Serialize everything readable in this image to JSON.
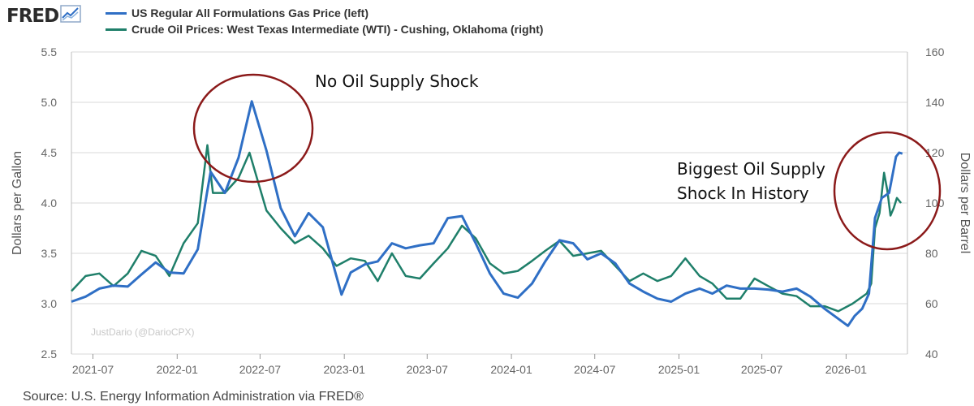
{
  "header": {
    "logo_text": "FRED",
    "logo_icon": "chart-trend-icon"
  },
  "legend": [
    {
      "label": "US Regular All Formulations Gas Price (left)",
      "color": "#2f6fc5"
    },
    {
      "label": "Crude Oil Prices: West Texas Intermediate (WTI) - Cushing, Oklahoma (right)",
      "color": "#1f7f6a"
    }
  ],
  "source": "Source: U.S. Energy Information Administration via FRED®",
  "chart_data": {
    "type": "line",
    "xlim": [
      "2021-05-15",
      "2026-05-15"
    ],
    "x_ticks": [
      "2021-07",
      "2022-01",
      "2022-07",
      "2023-01",
      "2023-07",
      "2024-01",
      "2024-07",
      "2025-01",
      "2025-07",
      "2026-01"
    ],
    "left_axis": {
      "label": "Dollars per Gallon",
      "ylim": [
        2.5,
        5.5
      ],
      "ticks": [
        "2.5",
        "3.0",
        "3.5",
        "4.0",
        "4.5",
        "5.0",
        "5.5"
      ]
    },
    "right_axis": {
      "label": "Dollars per Barrel",
      "ylim": [
        40,
        160
      ],
      "ticks": [
        "40",
        "60",
        "80",
        "100",
        "120",
        "140",
        "160"
      ]
    },
    "grid": "horizontal",
    "series": [
      {
        "name": "US Regular All Formulations Gas Price (left)",
        "axis": "left",
        "color": "#2f6fc5",
        "points": [
          [
            "2021-05-15",
            3.02
          ],
          [
            "2021-06-15",
            3.07
          ],
          [
            "2021-07-15",
            3.15
          ],
          [
            "2021-08-15",
            3.18
          ],
          [
            "2021-09-15",
            3.17
          ],
          [
            "2021-10-15",
            3.29
          ],
          [
            "2021-11-15",
            3.41
          ],
          [
            "2021-12-15",
            3.31
          ],
          [
            "2022-01-15",
            3.3
          ],
          [
            "2022-02-15",
            3.54
          ],
          [
            "2022-03-07",
            4.1
          ],
          [
            "2022-03-15",
            4.31
          ],
          [
            "2022-04-15",
            4.1
          ],
          [
            "2022-05-15",
            4.45
          ],
          [
            "2022-06-13",
            5.01
          ],
          [
            "2022-07-15",
            4.52
          ],
          [
            "2022-08-15",
            3.95
          ],
          [
            "2022-09-15",
            3.67
          ],
          [
            "2022-10-15",
            3.9
          ],
          [
            "2022-11-15",
            3.76
          ],
          [
            "2022-12-26",
            3.09
          ],
          [
            "2023-01-15",
            3.31
          ],
          [
            "2023-02-15",
            3.39
          ],
          [
            "2023-03-15",
            3.42
          ],
          [
            "2023-04-15",
            3.6
          ],
          [
            "2023-05-15",
            3.55
          ],
          [
            "2023-06-15",
            3.58
          ],
          [
            "2023-07-15",
            3.6
          ],
          [
            "2023-08-15",
            3.85
          ],
          [
            "2023-09-15",
            3.87
          ],
          [
            "2023-10-15",
            3.6
          ],
          [
            "2023-11-15",
            3.3
          ],
          [
            "2023-12-15",
            3.1
          ],
          [
            "2024-01-15",
            3.06
          ],
          [
            "2024-02-15",
            3.2
          ],
          [
            "2024-03-15",
            3.42
          ],
          [
            "2024-04-15",
            3.63
          ],
          [
            "2024-05-15",
            3.6
          ],
          [
            "2024-06-15",
            3.44
          ],
          [
            "2024-07-15",
            3.5
          ],
          [
            "2024-08-15",
            3.4
          ],
          [
            "2024-09-15",
            3.2
          ],
          [
            "2024-10-15",
            3.12
          ],
          [
            "2024-11-15",
            3.05
          ],
          [
            "2024-12-15",
            3.02
          ],
          [
            "2025-01-15",
            3.1
          ],
          [
            "2025-02-15",
            3.15
          ],
          [
            "2025-03-15",
            3.1
          ],
          [
            "2025-04-15",
            3.18
          ],
          [
            "2025-05-15",
            3.15
          ],
          [
            "2025-06-15",
            3.15
          ],
          [
            "2025-07-15",
            3.14
          ],
          [
            "2025-08-15",
            3.12
          ],
          [
            "2025-09-15",
            3.15
          ],
          [
            "2025-10-15",
            3.07
          ],
          [
            "2025-11-15",
            2.95
          ],
          [
            "2025-12-15",
            2.85
          ],
          [
            "2026-01-05",
            2.78
          ],
          [
            "2026-01-20",
            2.88
          ],
          [
            "2026-02-05",
            2.95
          ],
          [
            "2026-02-20",
            3.1
          ],
          [
            "2026-03-05",
            3.85
          ],
          [
            "2026-03-20",
            4.05
          ],
          [
            "2026-04-05",
            4.1
          ],
          [
            "2026-04-20",
            4.46
          ],
          [
            "2026-04-27",
            4.5
          ],
          [
            "2026-05-04",
            4.49
          ]
        ]
      },
      {
        "name": "Crude Oil Prices: West Texas Intermediate (WTI) - Cushing, Oklahoma (right)",
        "axis": "right",
        "color": "#1f7f6a",
        "points": [
          [
            "2021-05-15",
            65
          ],
          [
            "2021-06-15",
            71
          ],
          [
            "2021-07-15",
            72
          ],
          [
            "2021-08-15",
            67
          ],
          [
            "2021-09-15",
            72
          ],
          [
            "2021-10-15",
            81
          ],
          [
            "2021-11-15",
            79
          ],
          [
            "2021-12-15",
            71
          ],
          [
            "2022-01-15",
            84
          ],
          [
            "2022-02-15",
            92
          ],
          [
            "2022-03-08",
            123
          ],
          [
            "2022-03-20",
            104
          ],
          [
            "2022-04-15",
            104
          ],
          [
            "2022-05-15",
            110
          ],
          [
            "2022-06-08",
            120
          ],
          [
            "2022-07-15",
            97
          ],
          [
            "2022-08-15",
            90
          ],
          [
            "2022-09-15",
            84
          ],
          [
            "2022-10-15",
            87
          ],
          [
            "2022-11-15",
            82
          ],
          [
            "2022-12-15",
            75
          ],
          [
            "2023-01-15",
            78
          ],
          [
            "2023-02-15",
            77
          ],
          [
            "2023-03-15",
            69
          ],
          [
            "2023-04-15",
            80
          ],
          [
            "2023-05-15",
            71
          ],
          [
            "2023-06-15",
            70
          ],
          [
            "2023-07-15",
            76
          ],
          [
            "2023-08-15",
            82
          ],
          [
            "2023-09-15",
            91
          ],
          [
            "2023-10-15",
            86
          ],
          [
            "2023-11-15",
            76
          ],
          [
            "2023-12-15",
            72
          ],
          [
            "2024-01-15",
            73
          ],
          [
            "2024-02-15",
            77
          ],
          [
            "2024-03-15",
            81
          ],
          [
            "2024-04-15",
            85
          ],
          [
            "2024-05-15",
            79
          ],
          [
            "2024-06-15",
            80
          ],
          [
            "2024-07-15",
            81
          ],
          [
            "2024-08-15",
            75
          ],
          [
            "2024-09-15",
            69
          ],
          [
            "2024-10-15",
            72
          ],
          [
            "2024-11-15",
            69
          ],
          [
            "2024-12-15",
            71
          ],
          [
            "2025-01-15",
            78
          ],
          [
            "2025-02-15",
            71
          ],
          [
            "2025-03-15",
            68
          ],
          [
            "2025-04-15",
            62
          ],
          [
            "2025-05-15",
            62
          ],
          [
            "2025-06-15",
            70
          ],
          [
            "2025-07-15",
            67
          ],
          [
            "2025-08-15",
            64
          ],
          [
            "2025-09-15",
            63
          ],
          [
            "2025-10-15",
            59
          ],
          [
            "2025-11-15",
            59
          ],
          [
            "2025-12-15",
            57
          ],
          [
            "2026-01-15",
            60
          ],
          [
            "2026-02-15",
            64
          ],
          [
            "2026-02-25",
            68
          ],
          [
            "2026-03-05",
            90
          ],
          [
            "2026-03-15",
            96
          ],
          [
            "2026-03-25",
            112
          ],
          [
            "2026-04-01",
            105
          ],
          [
            "2026-04-08",
            95
          ],
          [
            "2026-04-15",
            98
          ],
          [
            "2026-04-22",
            102
          ],
          [
            "2026-05-01",
            100
          ]
        ]
      }
    ],
    "annotations": [
      {
        "text": "No Oil Supply Shock"
      },
      {
        "text": "Biggest Oil Supply Shock In History"
      }
    ],
    "watermark": "JustDario (@DarioCPX)"
  }
}
